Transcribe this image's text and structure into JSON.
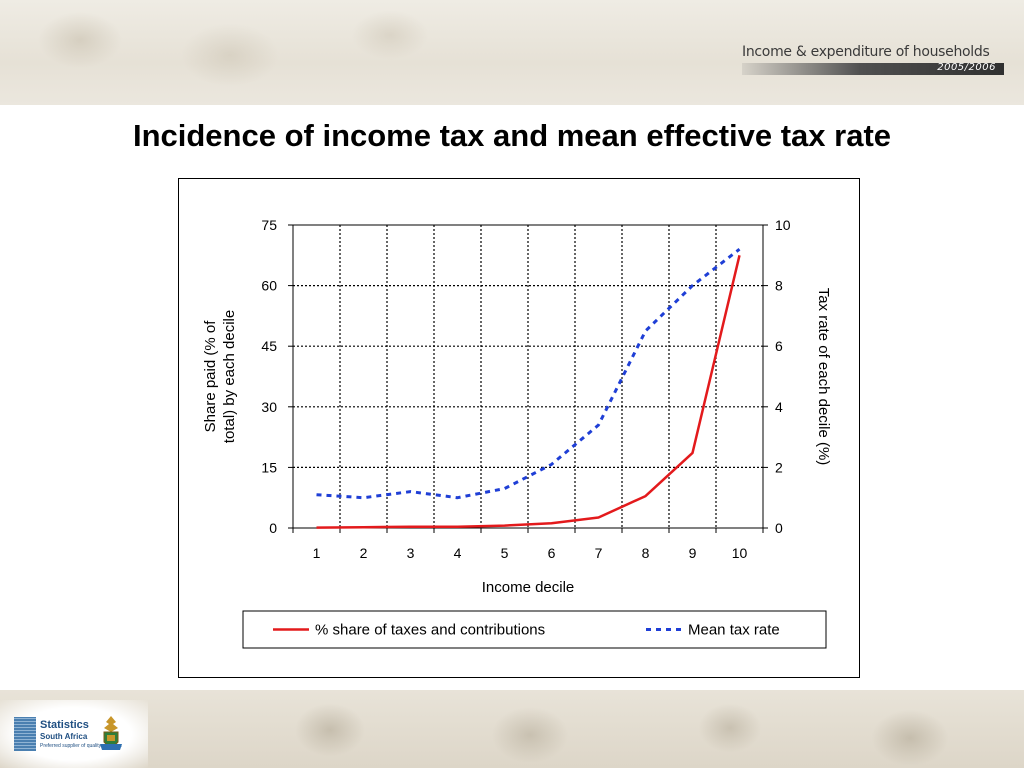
{
  "header": {
    "brand_title": "Income & expenditure of households",
    "brand_year": "2005/2006"
  },
  "slide": {
    "title": "Incidence of income tax and mean effective tax rate"
  },
  "footer": {
    "logo_line1": "Statistics",
    "logo_line2": "South Africa",
    "logo_tagline": "Preferred supplier of quality statistics"
  },
  "colors": {
    "share_series": "#e31a1c",
    "rate_series": "#1f3fd6",
    "grid": "#000000"
  },
  "chart_data": {
    "type": "line",
    "title": "",
    "xlabel": "Income decile",
    "ylabel": "Share paid (% of total) by each decile",
    "y2label": "Tax rate of each decile (%)",
    "categories": [
      "1",
      "2",
      "3",
      "4",
      "5",
      "6",
      "7",
      "8",
      "9",
      "10"
    ],
    "ylim": [
      0,
      75
    ],
    "y2lim": [
      0,
      10
    ],
    "yticks": [
      "0",
      "15",
      "30",
      "45",
      "60",
      "75"
    ],
    "y2ticks": [
      "0",
      "2",
      "4",
      "6",
      "8",
      "10"
    ],
    "grid": true,
    "legend_position": "bottom",
    "series": [
      {
        "name": "% share of taxes and contributions",
        "axis": "left",
        "style": "solid",
        "values": [
          0.1,
          0.2,
          0.3,
          0.3,
          0.6,
          1.2,
          2.6,
          7.9,
          18.6,
          67.5
        ]
      },
      {
        "name": "Mean tax rate",
        "axis": "right",
        "style": "dashed",
        "values": [
          1.1,
          1.0,
          1.2,
          1.0,
          1.3,
          2.1,
          3.4,
          6.5,
          8.0,
          9.2
        ]
      }
    ]
  }
}
